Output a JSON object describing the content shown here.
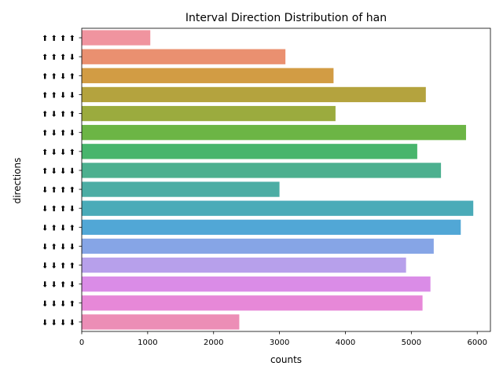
{
  "chart_data": {
    "type": "bar",
    "orientation": "horizontal",
    "title": "Interval Direction Distribution of han",
    "xlabel": "counts",
    "ylabel": "directions",
    "xlim": [
      0,
      6200
    ],
    "xticks": [
      0,
      1000,
      2000,
      3000,
      4000,
      5000,
      6000
    ],
    "grid": false,
    "categories": [
      "⬆ ⬆ ⬆ ⬆",
      "⬆ ⬆ ⬆ ⬇",
      "⬆ ⬆ ⬇ ⬆",
      "⬆ ⬆ ⬇ ⬇",
      "⬆ ⬇ ⬆ ⬆",
      "⬆ ⬇ ⬆ ⬇",
      "⬆ ⬇ ⬇ ⬆",
      "⬆ ⬇ ⬇ ⬇",
      "⬇ ⬆ ⬆ ⬆",
      "⬇ ⬆ ⬆ ⬇",
      "⬇ ⬆ ⬇ ⬆",
      "⬇ ⬆ ⬇ ⬇",
      "⬇ ⬇ ⬆ ⬆",
      "⬇ ⬇ ⬆ ⬇",
      "⬇ ⬇ ⬇ ⬆",
      "⬇ ⬇ ⬇ ⬇"
    ],
    "values": [
      1040,
      3090,
      3820,
      5220,
      3850,
      5830,
      5090,
      5450,
      3000,
      5940,
      5750,
      5340,
      4920,
      5290,
      5170,
      2390
    ],
    "colors": [
      "#f0949f",
      "#ea9070",
      "#d29c44",
      "#b4a33e",
      "#9bab3e",
      "#6cb545",
      "#48b56c",
      "#4cb08f",
      "#4cada4",
      "#4aabb8",
      "#51a7d6",
      "#86a5e6",
      "#b7a0eb",
      "#da8ce7",
      "#e788d8",
      "#ec8eb6"
    ]
  }
}
